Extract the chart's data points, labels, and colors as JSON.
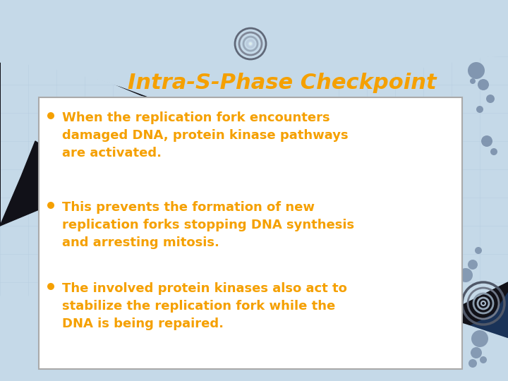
{
  "title": "Intra-S-Phase Checkpoint",
  "title_color": "#F5A000",
  "title_fontsize": 22,
  "bullet_color": "#F5A000",
  "bullet_fontsize": 13,
  "bullets": [
    "When the replication fork encounters\ndamaged DNA, protein kinase pathways\nare activated.",
    "This prevents the formation of new\nreplication forks stopping DNA synthesis\nand arresting mitosis.",
    "The involved protein kinases also act to\nstabilize the replication fork while the\nDNA is being repaired."
  ],
  "bg_color": "#C5D9E8",
  "grid_color": "#B0C8DC",
  "black_wave_color": "#111118",
  "dark_blue_wave_color": "#1A3358",
  "content_box_color": "#FFFFFF",
  "content_box_border": "#AAAAAA",
  "dot_color": "#7A8FAA",
  "circle_color": "#8899AA"
}
